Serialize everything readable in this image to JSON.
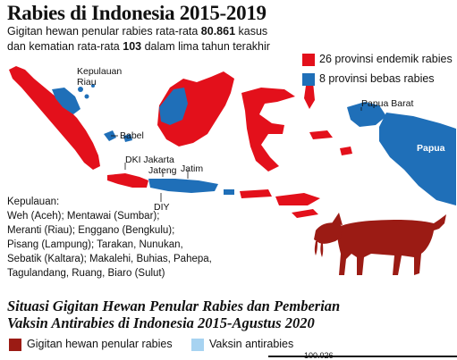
{
  "title": "Rabies di Indonesia 2015-2019",
  "subtitle": {
    "line1_pre": "Gigitan hewan penular rabies rata-rata ",
    "line1_value": "80.861",
    "line1_post": " kasus",
    "line2_pre": "dan kematian rata-rata ",
    "line2_value": "103",
    "line2_post": " dalam lima tahun terakhir"
  },
  "legend": [
    {
      "label": "26 provinsi endemik rabies",
      "color": "#e3101b"
    },
    {
      "label": "8 provinsi bebas rabies",
      "color": "#1f6fb8"
    }
  ],
  "map_labels": {
    "kepulauan_riau": "Kepulauan Riau",
    "babel": "Babel",
    "dki_jakarta": "DKI Jakarta",
    "jateng": "Jateng",
    "jatim": "Jatim",
    "diy": "DIY",
    "papua_barat": "Papua Barat",
    "papua": "Papua"
  },
  "kepulauan": {
    "title": "Kepulauan:",
    "lines": [
      "Weh (Aceh); Mentawai (Sumbar);",
      "Meranti (Riau); Enggano (Bengkulu);",
      "Pisang (Lampung); Tarakan, Nunukan,",
      "Sebatik (Kaltara); Makalehi, Buhias, Pahepa,",
      "Tagulandang, Ruang, Biaro (Sulut)"
    ]
  },
  "section_title": {
    "line1": "Situasi Gigitan Hewan Penular Rabies dan Pemberian",
    "line2": "Vaksin Antirabies di Indonesia 2015-Agustus 2020"
  },
  "chart_legend": [
    {
      "label": "Gigitan hewan penular rabies",
      "color": "#9b1b14"
    },
    {
      "label": "Vaksin antirabies",
      "color": "#a7d3f1"
    }
  ],
  "chart_partial_value": "100.026",
  "colors": {
    "endemic": "#e3101b",
    "free": "#1f6fb8",
    "free_light": "#a7d3f1",
    "dog": "#9b1b14"
  },
  "icons": {
    "dog": "dog-icon"
  }
}
